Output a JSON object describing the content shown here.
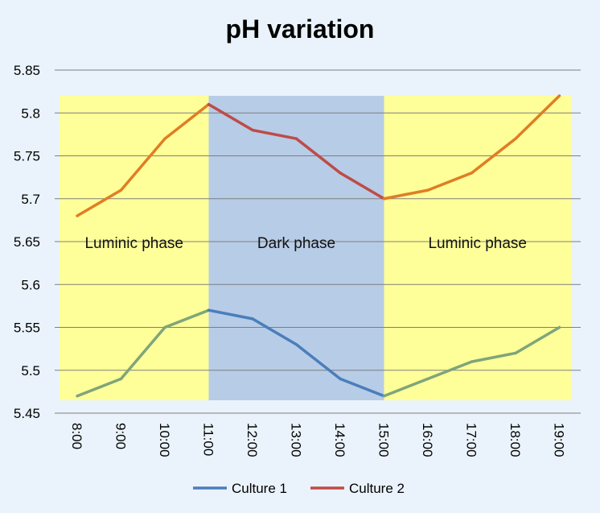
{
  "chart_data": {
    "type": "line",
    "title": "pH variation",
    "xlabel": "",
    "ylabel": "",
    "categories": [
      "8:00",
      "9:00",
      "10:00",
      "11:00",
      "12:00",
      "13:00",
      "14:00",
      "15:00",
      "16:00",
      "17:00",
      "18:00",
      "19:00"
    ],
    "ylim": [
      5.45,
      5.85
    ],
    "yticks": [
      "5.45",
      "5.5",
      "5.55",
      "5.6",
      "5.65",
      "5.7",
      "5.75",
      "5.8",
      "5.85"
    ],
    "grid": true,
    "legend_position": "bottom",
    "series": [
      {
        "name": "Culture 1",
        "color": "#4a7ebb",
        "values": [
          5.47,
          5.49,
          5.55,
          5.57,
          5.56,
          5.53,
          5.49,
          5.47,
          5.49,
          5.51,
          5.52,
          5.55
        ]
      },
      {
        "name": "Culture 2",
        "color": "#be4b48",
        "values": [
          5.68,
          5.71,
          5.77,
          5.81,
          5.78,
          5.77,
          5.73,
          5.7,
          5.71,
          5.73,
          5.77,
          5.82
        ]
      }
    ],
    "bands": [
      {
        "label": "Luminic phase",
        "from": "8:00",
        "to": "11:00",
        "color": "#ffff99",
        "label_y": 5.65
      },
      {
        "label": "Dark phase",
        "from": "11:00",
        "to": "15:00",
        "color": "#b7cce6",
        "label_y": 5.65
      },
      {
        "label": "Luminic phase",
        "from": "15:00",
        "to": "19:00",
        "color": "#ffff99",
        "label_y": 5.65
      }
    ],
    "band_range": [
      5.465,
      5.82
    ],
    "overlap_color": "#7fa57a"
  }
}
